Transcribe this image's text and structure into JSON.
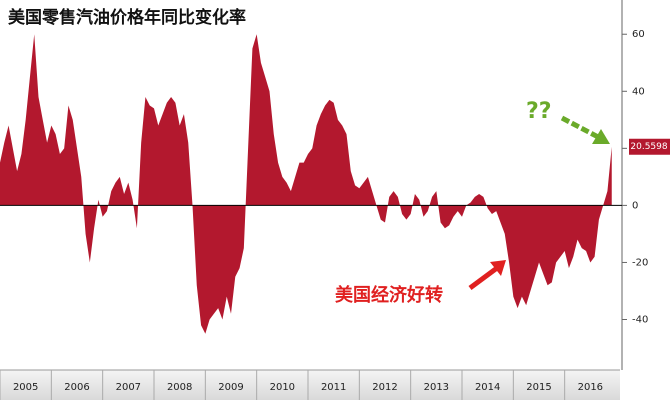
{
  "chart_data": {
    "type": "area",
    "title": "美国零售汽油价格年同比变化率",
    "annotations": [
      "??",
      "美国经济好转"
    ],
    "color": "#b3182e",
    "x": [
      2005.0,
      2005.083,
      2005.167,
      2005.25,
      2005.333,
      2005.417,
      2005.5,
      2005.583,
      2005.667,
      2005.75,
      2005.833,
      2005.917,
      2006.0,
      2006.083,
      2006.167,
      2006.25,
      2006.333,
      2006.417,
      2006.5,
      2006.583,
      2006.667,
      2006.75,
      2006.833,
      2006.917,
      2007.0,
      2007.083,
      2007.167,
      2007.25,
      2007.333,
      2007.417,
      2007.5,
      2007.583,
      2007.667,
      2007.75,
      2007.833,
      2007.917,
      2008.0,
      2008.083,
      2008.167,
      2008.25,
      2008.333,
      2008.417,
      2008.5,
      2008.583,
      2008.667,
      2008.75,
      2008.833,
      2008.917,
      2009.0,
      2009.083,
      2009.167,
      2009.25,
      2009.333,
      2009.417,
      2009.5,
      2009.583,
      2009.667,
      2009.75,
      2009.833,
      2009.917,
      2010.0,
      2010.083,
      2010.167,
      2010.25,
      2010.333,
      2010.417,
      2010.5,
      2010.583,
      2010.667,
      2010.75,
      2010.833,
      2010.917,
      2011.0,
      2011.083,
      2011.167,
      2011.25,
      2011.333,
      2011.417,
      2011.5,
      2011.583,
      2011.667,
      2011.75,
      2011.833,
      2011.917,
      2012.0,
      2012.083,
      2012.167,
      2012.25,
      2012.333,
      2012.417,
      2012.5,
      2012.583,
      2012.667,
      2012.75,
      2012.833,
      2012.917,
      2013.0,
      2013.083,
      2013.167,
      2013.25,
      2013.333,
      2013.417,
      2013.5,
      2013.583,
      2013.667,
      2013.75,
      2013.833,
      2013.917,
      2014.0,
      2014.083,
      2014.167,
      2014.25,
      2014.333,
      2014.417,
      2014.5,
      2014.583,
      2014.667,
      2014.75,
      2014.833,
      2014.917,
      2015.0,
      2015.083,
      2015.167,
      2015.25,
      2015.333,
      2015.417,
      2015.5,
      2015.583,
      2015.667,
      2015.75,
      2015.833,
      2015.917,
      2016.0,
      2016.083,
      2016.167,
      2016.25,
      2016.333,
      2016.417,
      2016.5,
      2016.583,
      2016.667,
      2016.75,
      2016.833,
      2016.917
    ],
    "values": [
      15,
      22,
      28,
      20,
      12,
      18,
      30,
      45,
      60,
      38,
      30,
      22,
      28,
      25,
      18,
      20,
      35,
      30,
      20,
      10,
      -10,
      -20,
      -8,
      2,
      -4,
      -2,
      5,
      8,
      10,
      4,
      8,
      2,
      -8,
      22,
      38,
      35,
      34,
      28,
      32,
      36,
      38,
      36,
      28,
      32,
      22,
      0,
      -28,
      -42,
      -45,
      -40,
      -38,
      -36,
      -40,
      -32,
      -38,
      -25,
      -22,
      -15,
      20,
      55,
      60,
      50,
      45,
      40,
      25,
      15,
      10,
      8,
      5,
      10,
      15,
      15,
      18,
      20,
      28,
      32,
      35,
      37,
      36,
      30,
      28,
      25,
      12,
      7,
      6,
      8,
      10,
      5,
      0,
      -5,
      -6,
      3,
      5,
      3,
      -3,
      -5,
      -3,
      4,
      2,
      -4,
      -2,
      3,
      5,
      -6,
      -8,
      -7,
      -4,
      -2,
      -4,
      0,
      1,
      3,
      4,
      3,
      -1,
      -3,
      -2,
      -6,
      -10,
      -20,
      -32,
      -36,
      -32,
      -35,
      -30,
      -25,
      -20,
      -24,
      -28,
      -27,
      -20,
      -18,
      -16,
      -22,
      -18,
      -12,
      -15,
      -16,
      -20,
      -18,
      -5,
      0,
      5,
      20.5598
    ],
    "xlim": [
      2005,
      2017
    ],
    "xticks": [
      2005,
      2006,
      2007,
      2008,
      2009,
      2010,
      2011,
      2012,
      2013,
      2014,
      2015,
      2016
    ],
    "ylim": [
      -57,
      72
    ],
    "yticks": [
      -40,
      -20,
      0,
      20,
      40,
      60
    ]
  }
}
